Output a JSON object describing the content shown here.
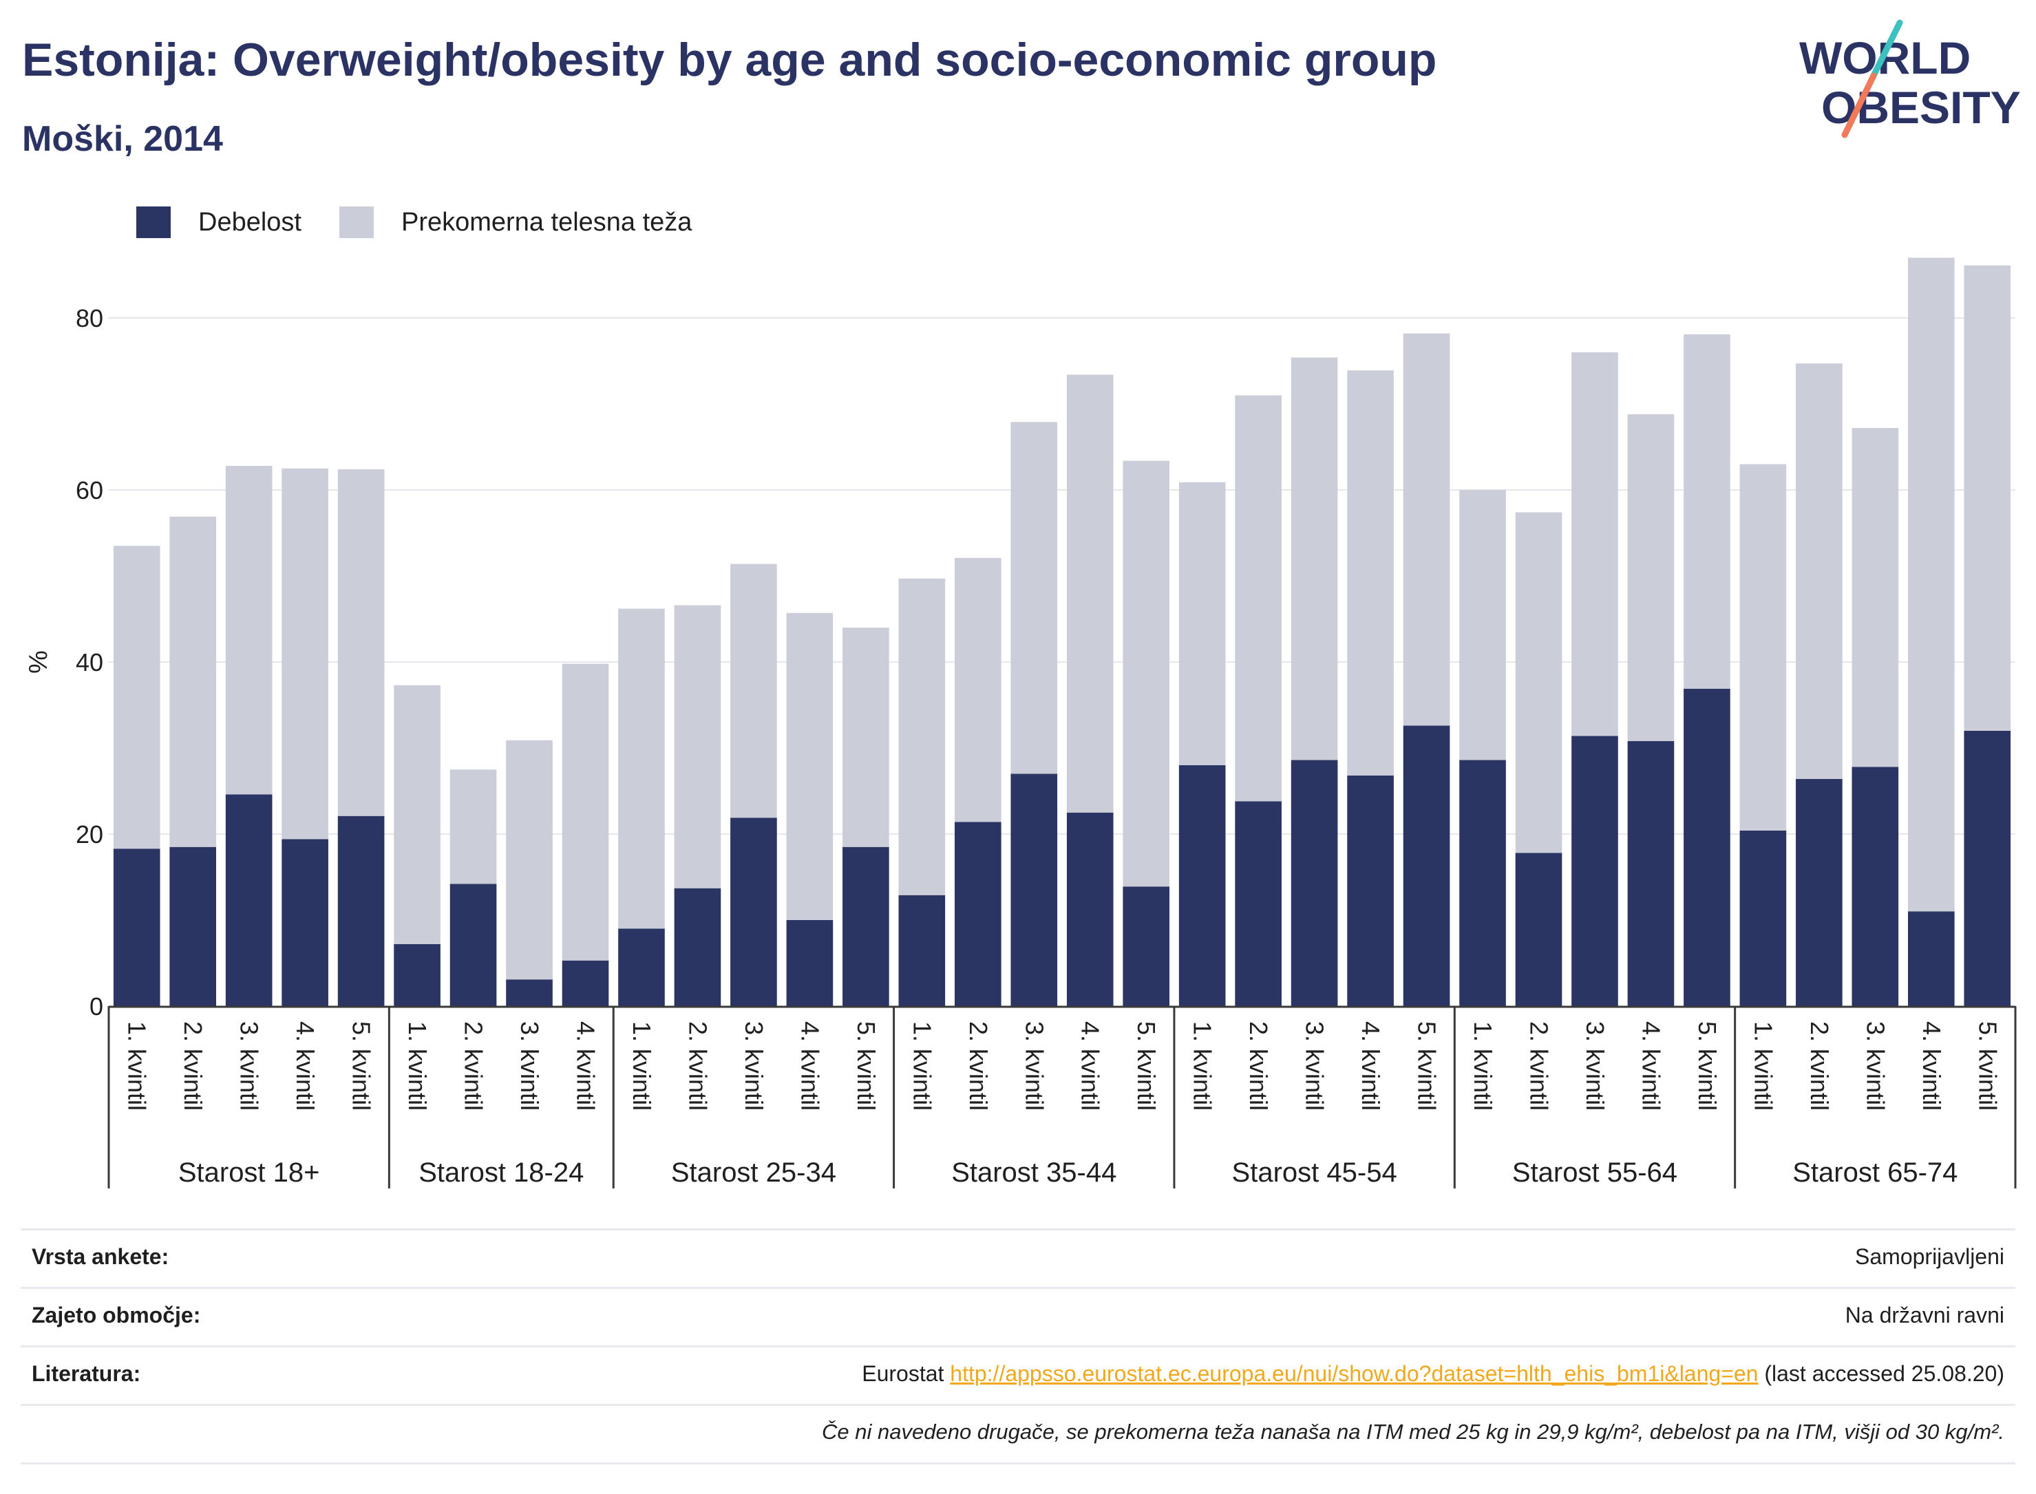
{
  "header": {
    "title": "Estonija: Overweight/obesity by age and socio-economic group",
    "subtitle": "Moški, 2014"
  },
  "logo": {
    "line1": "WORLD",
    "line2": "OBESITY"
  },
  "colors": {
    "obesity": "#2a3563",
    "overweight": "#cbcdd8",
    "title": "#2a3363",
    "link": "#f2a81d",
    "logo_accent_1": "#3cc0c0",
    "logo_accent_2": "#f07a5a"
  },
  "chart_data": {
    "type": "bar",
    "stacked": true,
    "ylabel": "%",
    "ylim": [
      0,
      90
    ],
    "yticks": [
      0,
      20,
      40,
      60,
      80
    ],
    "grid": true,
    "legend_position": "top-left",
    "groups": [
      {
        "label": "Starost 18+",
        "categories": [
          "1. kvintil",
          "2. kvintil",
          "3. kvintil",
          "4. kvintil",
          "5. kvintil"
        ]
      },
      {
        "label": "Starost 18-24",
        "categories": [
          "1. kvintil",
          "2. kvintil",
          "3. kvintil",
          "4. kvintil"
        ]
      },
      {
        "label": "Starost 25-34",
        "categories": [
          "1. kvintil",
          "2. kvintil",
          "3. kvintil",
          "4. kvintil",
          "5. kvintil"
        ]
      },
      {
        "label": "Starost 35-44",
        "categories": [
          "1. kvintil",
          "2. kvintil",
          "3. kvintil",
          "4. kvintil",
          "5. kvintil"
        ]
      },
      {
        "label": "Starost 45-54",
        "categories": [
          "1. kvintil",
          "2. kvintil",
          "3. kvintil",
          "4. kvintil",
          "5. kvintil"
        ]
      },
      {
        "label": "Starost 55-64",
        "categories": [
          "1. kvintil",
          "2. kvintil",
          "3. kvintil",
          "4. kvintil",
          "5. kvintil"
        ]
      },
      {
        "label": "Starost 65-74",
        "categories": [
          "1. kvintil",
          "2. kvintil",
          "3. kvintil",
          "4. kvintil",
          "5. kvintil"
        ]
      }
    ],
    "series": [
      {
        "name": "Debelost",
        "values": [
          18.3,
          18.5,
          24.6,
          19.4,
          22.1,
          7.2,
          14.2,
          3.1,
          5.3,
          9.0,
          13.7,
          21.9,
          10.0,
          18.5,
          12.9,
          21.4,
          27.0,
          22.5,
          13.9,
          28.0,
          23.8,
          28.6,
          26.8,
          32.6,
          28.6,
          17.8,
          31.4,
          30.8,
          36.9,
          20.4,
          26.4,
          27.8,
          11.0,
          32.0
        ]
      },
      {
        "name": "Prekomerna telesna teža",
        "values": [
          35.2,
          38.4,
          38.2,
          43.1,
          40.3,
          30.1,
          13.3,
          27.8,
          34.5,
          37.2,
          32.9,
          29.5,
          35.7,
          25.5,
          36.8,
          30.7,
          40.9,
          50.9,
          49.5,
          32.9,
          47.2,
          46.8,
          47.1,
          45.6,
          31.4,
          39.6,
          44.6,
          38.0,
          41.2,
          42.6,
          48.3,
          39.4,
          76.0,
          54.1
        ]
      }
    ]
  },
  "meta": {
    "survey_type_label": "Vrsta ankete:",
    "survey_type_value": "Samoprijavljeni",
    "coverage_label": "Zajeto območje:",
    "coverage_value": "Na državni ravni",
    "reference_label": "Literatura:",
    "reference_prefix": "Eurostat",
    "reference_link": "http://appsso.eurostat.ec.europa.eu/nui/show.do?dataset=hlth_ehis_bm1i&lang=en",
    "reference_suffix": "(last accessed 25.08.20)",
    "note": "Če ni navedeno drugače, se prekomerna teža nanaša na ITM med 25 kg in 29,9 kg/m², debelost pa na ITM, višji od 30 kg/m²."
  }
}
